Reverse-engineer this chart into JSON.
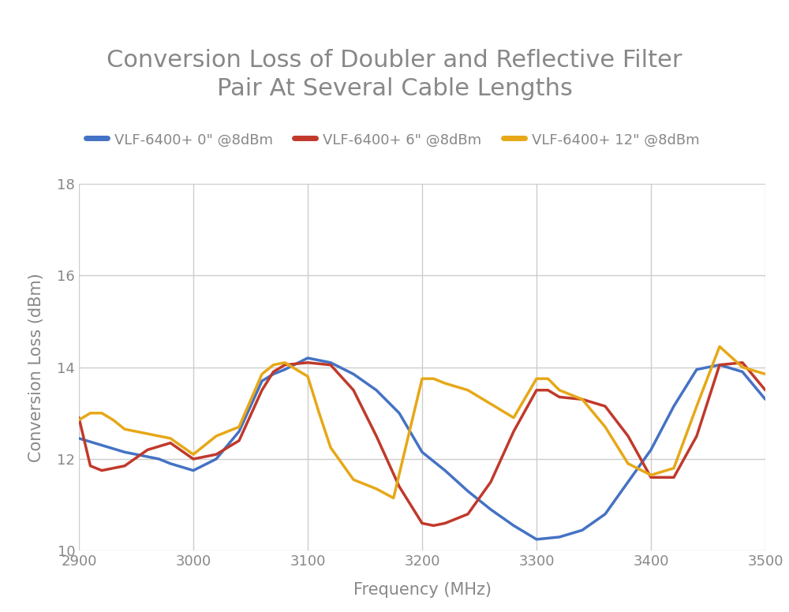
{
  "title": "Conversion Loss of Doubler and Reflective Filter\nPair At Several Cable Lengths",
  "xlabel": "Frequency (MHz)",
  "ylabel": "Conversion Loss (dBm)",
  "xlim": [
    2900,
    3500
  ],
  "ylim": [
    10,
    18
  ],
  "yticks": [
    10,
    12,
    14,
    16,
    18
  ],
  "xticks": [
    2900,
    3000,
    3100,
    3200,
    3300,
    3400,
    3500
  ],
  "background_color": "#ffffff",
  "grid_color": "#cccccc",
  "title_color": "#888888",
  "label_color": "#888888",
  "tick_color": "#888888",
  "series": [
    {
      "label": "VLF-6400+ 0\" @8dBm",
      "color": "#4472C4",
      "linewidth": 2.5,
      "x": [
        2900,
        2920,
        2940,
        2960,
        2970,
        2980,
        3000,
        3020,
        3040,
        3060,
        3070,
        3080,
        3100,
        3120,
        3140,
        3160,
        3180,
        3200,
        3220,
        3240,
        3260,
        3280,
        3300,
        3320,
        3340,
        3360,
        3380,
        3400,
        3420,
        3440,
        3460,
        3480,
        3500
      ],
      "y": [
        12.45,
        12.3,
        12.15,
        12.05,
        12.0,
        11.9,
        11.75,
        12.0,
        12.6,
        13.7,
        13.85,
        13.95,
        14.2,
        14.1,
        13.85,
        13.5,
        13.0,
        12.15,
        11.75,
        11.3,
        10.9,
        10.55,
        10.25,
        10.3,
        10.45,
        10.8,
        11.5,
        12.2,
        13.15,
        13.95,
        14.05,
        13.9,
        13.3
      ]
    },
    {
      "label": "VLF-6400+ 6\" @8dBm",
      "color": "#C0392B",
      "linewidth": 2.5,
      "x": [
        2900,
        2910,
        2920,
        2940,
        2960,
        2980,
        3000,
        3020,
        3040,
        3060,
        3070,
        3080,
        3100,
        3120,
        3140,
        3160,
        3180,
        3200,
        3210,
        3220,
        3240,
        3260,
        3280,
        3300,
        3310,
        3320,
        3340,
        3360,
        3380,
        3400,
        3420,
        3440,
        3460,
        3480,
        3500
      ],
      "y": [
        12.9,
        11.85,
        11.75,
        11.85,
        12.2,
        12.35,
        12.0,
        12.1,
        12.4,
        13.5,
        13.9,
        14.05,
        14.1,
        14.05,
        13.5,
        12.5,
        11.4,
        10.6,
        10.55,
        10.6,
        10.8,
        11.5,
        12.6,
        13.5,
        13.5,
        13.35,
        13.3,
        13.15,
        12.5,
        11.6,
        11.6,
        12.5,
        14.05,
        14.1,
        13.5
      ]
    },
    {
      "label": "VLF-6400+ 12\" @8dBm",
      "color": "#E6A817",
      "linewidth": 2.5,
      "x": [
        2900,
        2910,
        2920,
        2930,
        2940,
        2960,
        2980,
        3000,
        3020,
        3040,
        3060,
        3070,
        3080,
        3100,
        3110,
        3120,
        3140,
        3160,
        3175,
        3200,
        3210,
        3220,
        3240,
        3260,
        3280,
        3300,
        3310,
        3320,
        3340,
        3360,
        3380,
        3400,
        3420,
        3440,
        3460,
        3480,
        3500
      ],
      "y": [
        12.85,
        13.0,
        13.0,
        12.85,
        12.65,
        12.55,
        12.45,
        12.1,
        12.5,
        12.7,
        13.85,
        14.05,
        14.1,
        13.8,
        13.0,
        12.25,
        11.55,
        11.35,
        11.15,
        13.75,
        13.75,
        13.65,
        13.5,
        13.2,
        12.9,
        13.75,
        13.75,
        13.5,
        13.3,
        12.7,
        11.9,
        11.65,
        11.8,
        13.15,
        14.45,
        14.0,
        13.85
      ]
    }
  ],
  "legend_fontsize": 13,
  "title_fontsize": 22,
  "label_fontsize": 15,
  "tick_fontsize": 13
}
